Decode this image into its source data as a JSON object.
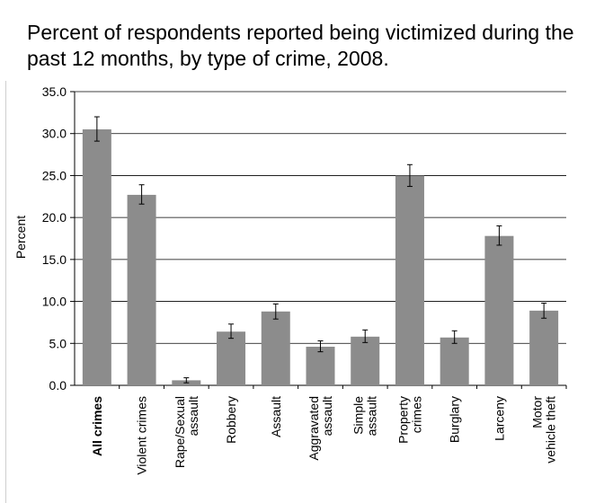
{
  "chart_data": {
    "type": "bar",
    "title": "Percent of respondents reported being victimized during the past 12 months, by type of crime, 2008.",
    "xlabel": "",
    "ylabel": "Percent",
    "ylim": [
      0,
      35
    ],
    "yticks": [
      "0.0",
      "5.0",
      "10.0",
      "15.0",
      "20.0",
      "25.0",
      "30.0",
      "35.0"
    ],
    "grid": true,
    "bar_color": "#8c8c8c",
    "categories": [
      {
        "lines": [
          "All crimes"
        ],
        "bold": true
      },
      {
        "lines": [
          "Violent crimes"
        ],
        "bold": false
      },
      {
        "lines": [
          "Rape/Sexual",
          "assault"
        ],
        "bold": false
      },
      {
        "lines": [
          "Robbery"
        ],
        "bold": false
      },
      {
        "lines": [
          "Assault"
        ],
        "bold": false
      },
      {
        "lines": [
          "Aggravated",
          "assault"
        ],
        "bold": false
      },
      {
        "lines": [
          "Simple",
          "assault"
        ],
        "bold": false
      },
      {
        "lines": [
          "Property",
          "crimes"
        ],
        "bold": false
      },
      {
        "lines": [
          "Burglary"
        ],
        "bold": false
      },
      {
        "lines": [
          "Larceny"
        ],
        "bold": false
      },
      {
        "lines": [
          "Motor",
          "vehicle theft"
        ],
        "bold": false
      }
    ],
    "values": [
      30.5,
      22.7,
      0.6,
      6.4,
      8.8,
      4.6,
      5.8,
      25.0,
      5.7,
      17.8,
      8.9
    ],
    "error_low": [
      29.1,
      21.6,
      0.3,
      5.6,
      7.9,
      4.0,
      5.1,
      23.7,
      5.0,
      16.7,
      8.0
    ],
    "error_high": [
      32.0,
      23.9,
      0.9,
      7.3,
      9.7,
      5.3,
      6.6,
      26.3,
      6.5,
      19.0,
      9.8
    ]
  }
}
